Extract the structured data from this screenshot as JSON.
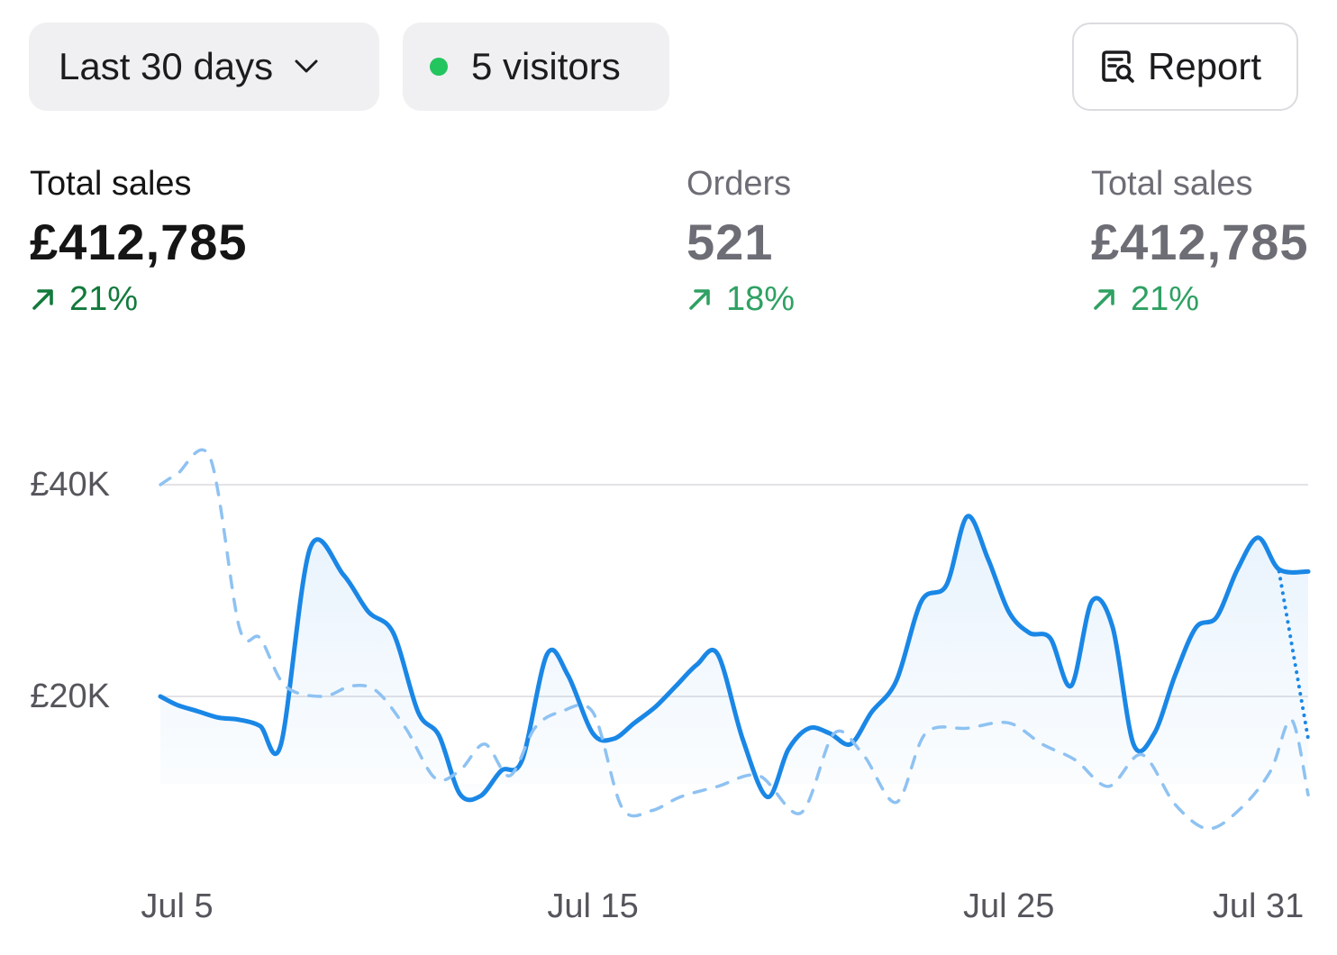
{
  "toolbar": {
    "range_label": "Last 30 days",
    "range_icon": "chevron-down-icon",
    "visitors_label": "5 visitors",
    "visitors_dot_color": "#22c55e",
    "report_label": "Report",
    "report_icon": "report-search-icon"
  },
  "metrics": [
    {
      "label": "Total sales",
      "value": "£412,785",
      "change": "21%",
      "trend_icon": "arrow-up-right-icon"
    },
    {
      "label": "Orders",
      "value": "521",
      "change": "18%",
      "trend_icon": "arrow-up-right-icon"
    },
    {
      "label": "Total sales",
      "value": "£412,785",
      "change": "21%",
      "trend_icon": "arrow-up-right-icon"
    }
  ],
  "colors": {
    "accent": "#1a87e6",
    "positive": "#137a3c",
    "positive_muted": "#2fa163",
    "grid": "#e3e3e7"
  },
  "chart_data": {
    "type": "line",
    "x_tick_labels": [
      "Jul 5",
      "Jul 15",
      "Jul 25",
      "Jul 31"
    ],
    "x_ticks": [
      5,
      15,
      25,
      31
    ],
    "xlim": [
      4.6,
      32.2
    ],
    "y_tick_labels": [
      "£20K",
      "£40K"
    ],
    "y_ticks": [
      20000,
      40000
    ],
    "ylim": [
      8000,
      42000
    ],
    "grid": "horizontal",
    "area_fill": true,
    "series": [
      {
        "style": "solid",
        "color": "#1a87e6",
        "x": [
          4.6,
          5,
          5.5,
          6,
          6.5,
          7,
          7.5,
          8.2,
          9,
          9.6,
          10.2,
          10.8,
          11.3,
          11.8,
          12.3,
          12.8,
          13.3,
          13.9,
          14.4,
          15,
          15.5,
          16,
          16.5,
          17,
          17.5,
          18,
          18.6,
          19.2,
          19.7,
          20.2,
          20.7,
          21.2,
          21.7,
          22.3,
          22.9,
          23.5,
          24,
          24.5,
          25,
          25.5,
          26,
          26.5,
          27,
          27.5,
          28,
          28.5,
          29,
          29.5,
          30,
          30.5,
          31,
          31.5,
          32.2
        ],
        "y": [
          20000,
          19200,
          18600,
          18000,
          17800,
          17200,
          15500,
          34000,
          31500,
          28000,
          26000,
          18500,
          16300,
          10800,
          10600,
          13000,
          14000,
          24000,
          22000,
          16500,
          16000,
          17500,
          19000,
          21000,
          23000,
          24000,
          16000,
          10500,
          15000,
          17000,
          16500,
          15500,
          18500,
          21500,
          29000,
          30500,
          37000,
          33000,
          28000,
          26000,
          25500,
          21000,
          29000,
          26500,
          15500,
          16500,
          22000,
          26500,
          27500,
          32000,
          35000,
          32000,
          31800
        ]
      },
      {
        "style": "dotted",
        "color": "#1a87e6",
        "x": [
          31.5,
          32.2
        ],
        "y": [
          31800,
          16000
        ]
      },
      {
        "style": "dashed",
        "color": "#8ec2f2",
        "x": [
          4.6,
          5,
          5.8,
          6.5,
          7,
          7.6,
          8.5,
          9.2,
          9.8,
          10.5,
          11.2,
          11.8,
          12.4,
          13,
          13.6,
          14.2,
          15,
          15.7,
          16.4,
          17.1,
          18,
          19,
          20,
          20.8,
          21.5,
          22.3,
          23,
          24,
          25,
          25.8,
          26.6,
          27.4,
          28.2,
          29,
          29.8,
          30.6,
          31.3,
          31.8,
          32.2
        ],
        "y": [
          40000,
          41000,
          42500,
          26500,
          25500,
          21000,
          20000,
          21000,
          20500,
          17000,
          12300,
          13000,
          15500,
          12500,
          17000,
          18500,
          18500,
          9500,
          9200,
          10500,
          11500,
          12500,
          9000,
          16500,
          14500,
          10000,
          16500,
          17000,
          17500,
          15500,
          14000,
          11500,
          14500,
          9800,
          7500,
          9500,
          13000,
          17800,
          10700
        ]
      }
    ]
  }
}
